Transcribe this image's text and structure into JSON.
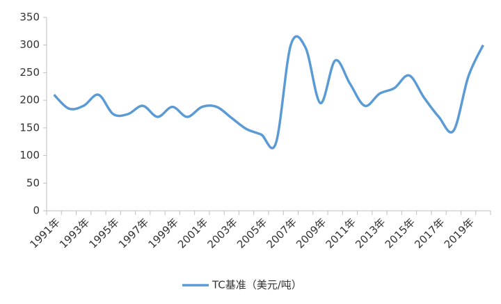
{
  "chart_data": {
    "type": "line",
    "categories": [
      "1991年",
      null,
      "1993年",
      null,
      "1995年",
      null,
      "1997年",
      null,
      "1999年",
      null,
      "2001年",
      null,
      "2003年",
      null,
      "2005年",
      null,
      "2007年",
      null,
      "2009年",
      null,
      "2011年",
      null,
      "2013年",
      null,
      "2015年",
      null,
      "2017年",
      null,
      "2019年",
      null
    ],
    "series": [
      {
        "name": "TC基准（美元/吨）",
        "color": "#5b9bd5",
        "values": [
          210,
          185,
          190,
          210,
          175,
          175,
          190,
          170,
          188,
          170,
          188,
          188,
          168,
          148,
          138,
          123,
          300,
          295,
          195,
          272,
          230,
          190,
          212,
          222,
          245,
          205,
          170,
          145,
          243,
          300
        ]
      }
    ],
    "ylim": [
      0,
      350
    ],
    "yticks": [
      0,
      50,
      100,
      150,
      200,
      250,
      300,
      350
    ],
    "legend": "bottom"
  }
}
